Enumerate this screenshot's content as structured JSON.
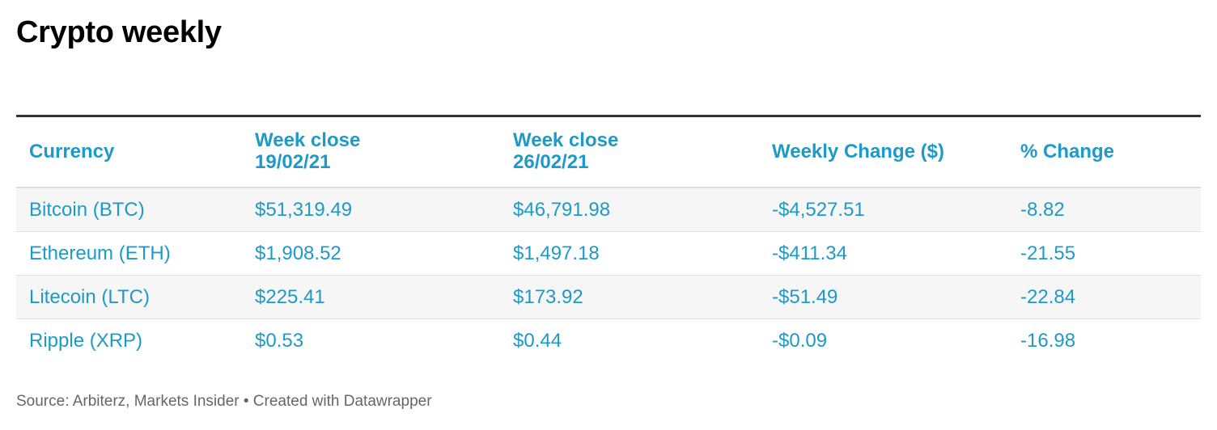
{
  "title": "Crypto weekly",
  "colors": {
    "accent": "#1d9ac8",
    "rule": "#333333",
    "row_alt": "#f6f6f6",
    "source_text": "#666666"
  },
  "table": {
    "headers": [
      {
        "line1": "Currency",
        "line2": ""
      },
      {
        "line1": "Week close",
        "line2": "19/02/21"
      },
      {
        "line1": "Week close",
        "line2": "26/02/21"
      },
      {
        "line1": "Weekly Change ($)",
        "line2": ""
      },
      {
        "line1": "% Change",
        "line2": ""
      }
    ],
    "rows": [
      [
        "Bitcoin (BTC)",
        "$51,319.49",
        "$46,791.98",
        "-$4,527.51",
        "-8.82"
      ],
      [
        "Ethereum (ETH)",
        "$1,908.52",
        "$1,497.18",
        "-$411.34",
        "-21.55"
      ],
      [
        "Litecoin (LTC)",
        "$225.41",
        "$173.92",
        "-$51.49",
        "-22.84"
      ],
      [
        "Ripple (XRP)",
        "$0.53",
        "$0.44",
        "-$0.09",
        "-16.98"
      ]
    ]
  },
  "footer": {
    "source": "Source: Arbiterz, Markets Insider • Created with Datawrapper"
  }
}
